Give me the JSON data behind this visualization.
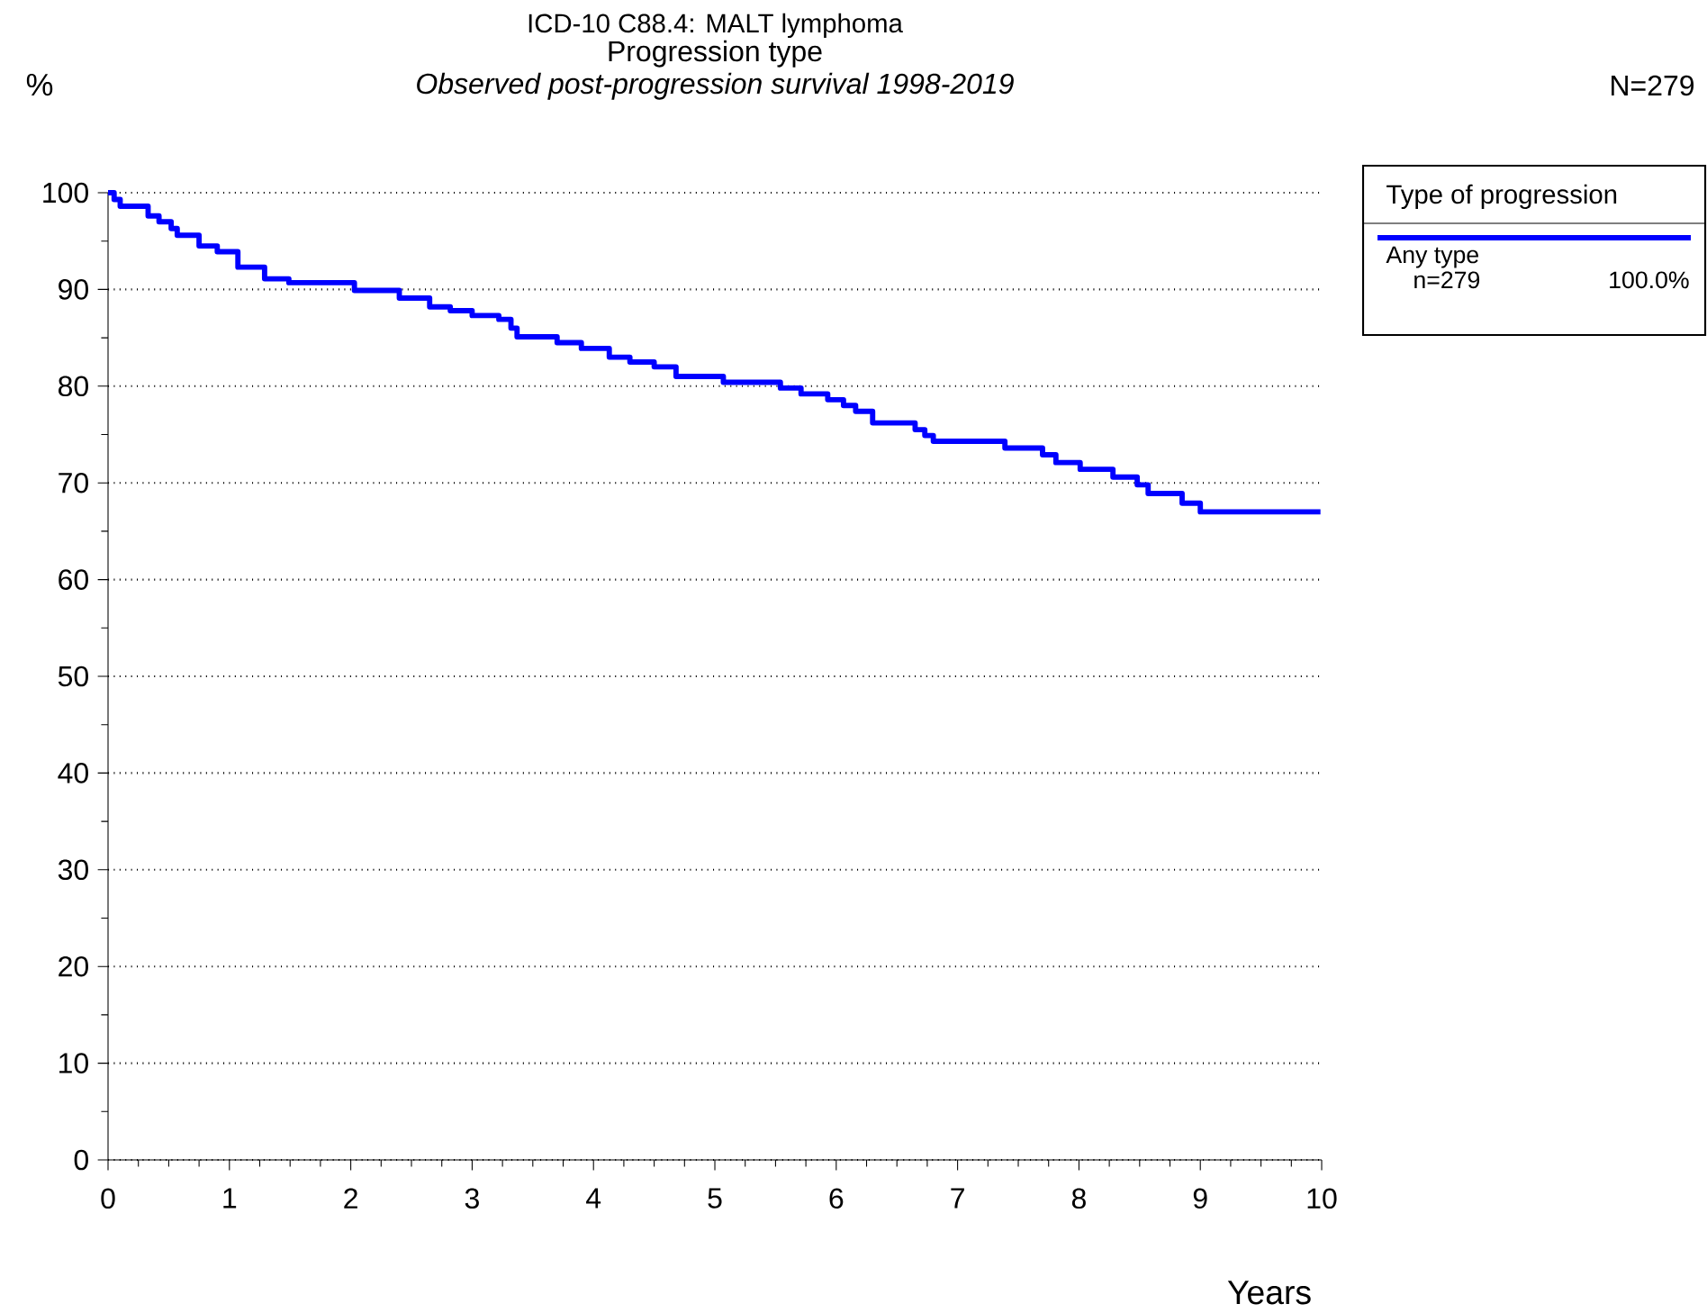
{
  "chart_data": {
    "type": "step",
    "title": "ICD-10 C88.4: MALT lymphoma",
    "subtitle": "Progression type",
    "xlabel": "Years",
    "ylabel": "%",
    "legend_title": "Type of progression",
    "annotations": [
      "Observed post-progression survival 1998-2019",
      "N=279",
      "n=279",
      "100.0%"
    ],
    "xlim": [
      0,
      10
    ],
    "ylim": [
      0,
      100
    ],
    "xticks": [
      0,
      1,
      2,
      3,
      4,
      5,
      6,
      7,
      8,
      9,
      10
    ],
    "yticks": [
      0,
      10,
      20,
      30,
      40,
      50,
      60,
      70,
      80,
      90,
      100
    ],
    "grid": "y",
    "legend": "top right",
    "series": [
      {
        "name": "Any type",
        "color": "#0000ff",
        "line_style": "solid",
        "x": [
          0,
          0.05,
          0.1,
          0.33,
          0.42,
          0.52,
          0.57,
          0.75,
          0.9,
          1.07,
          1.29,
          1.49,
          2.03,
          2.4,
          2.65,
          2.82,
          3.0,
          3.22,
          3.32,
          3.37,
          3.7,
          3.9,
          4.13,
          4.3,
          4.5,
          4.68,
          5.07,
          5.54,
          5.71,
          5.93,
          6.06,
          6.16,
          6.3,
          6.65,
          6.73,
          6.8,
          7.39,
          7.7,
          7.81,
          8.01,
          8.28,
          8.48,
          8.57,
          8.85,
          9.0,
          9.99
        ],
        "values": [
          100,
          99.3,
          98.6,
          97.6,
          97.0,
          96.3,
          95.6,
          94.5,
          93.9,
          92.3,
          91.1,
          90.7,
          89.9,
          89.1,
          88.2,
          87.8,
          87.3,
          86.9,
          86.0,
          85.1,
          84.5,
          83.9,
          83.0,
          82.5,
          82.0,
          81.0,
          80.4,
          79.8,
          79.2,
          78.6,
          78.0,
          77.4,
          76.2,
          75.5,
          74.9,
          74.3,
          73.6,
          72.9,
          72.1,
          71.4,
          70.6,
          69.8,
          68.9,
          67.9,
          67.0,
          67.0
        ]
      }
    ]
  }
}
